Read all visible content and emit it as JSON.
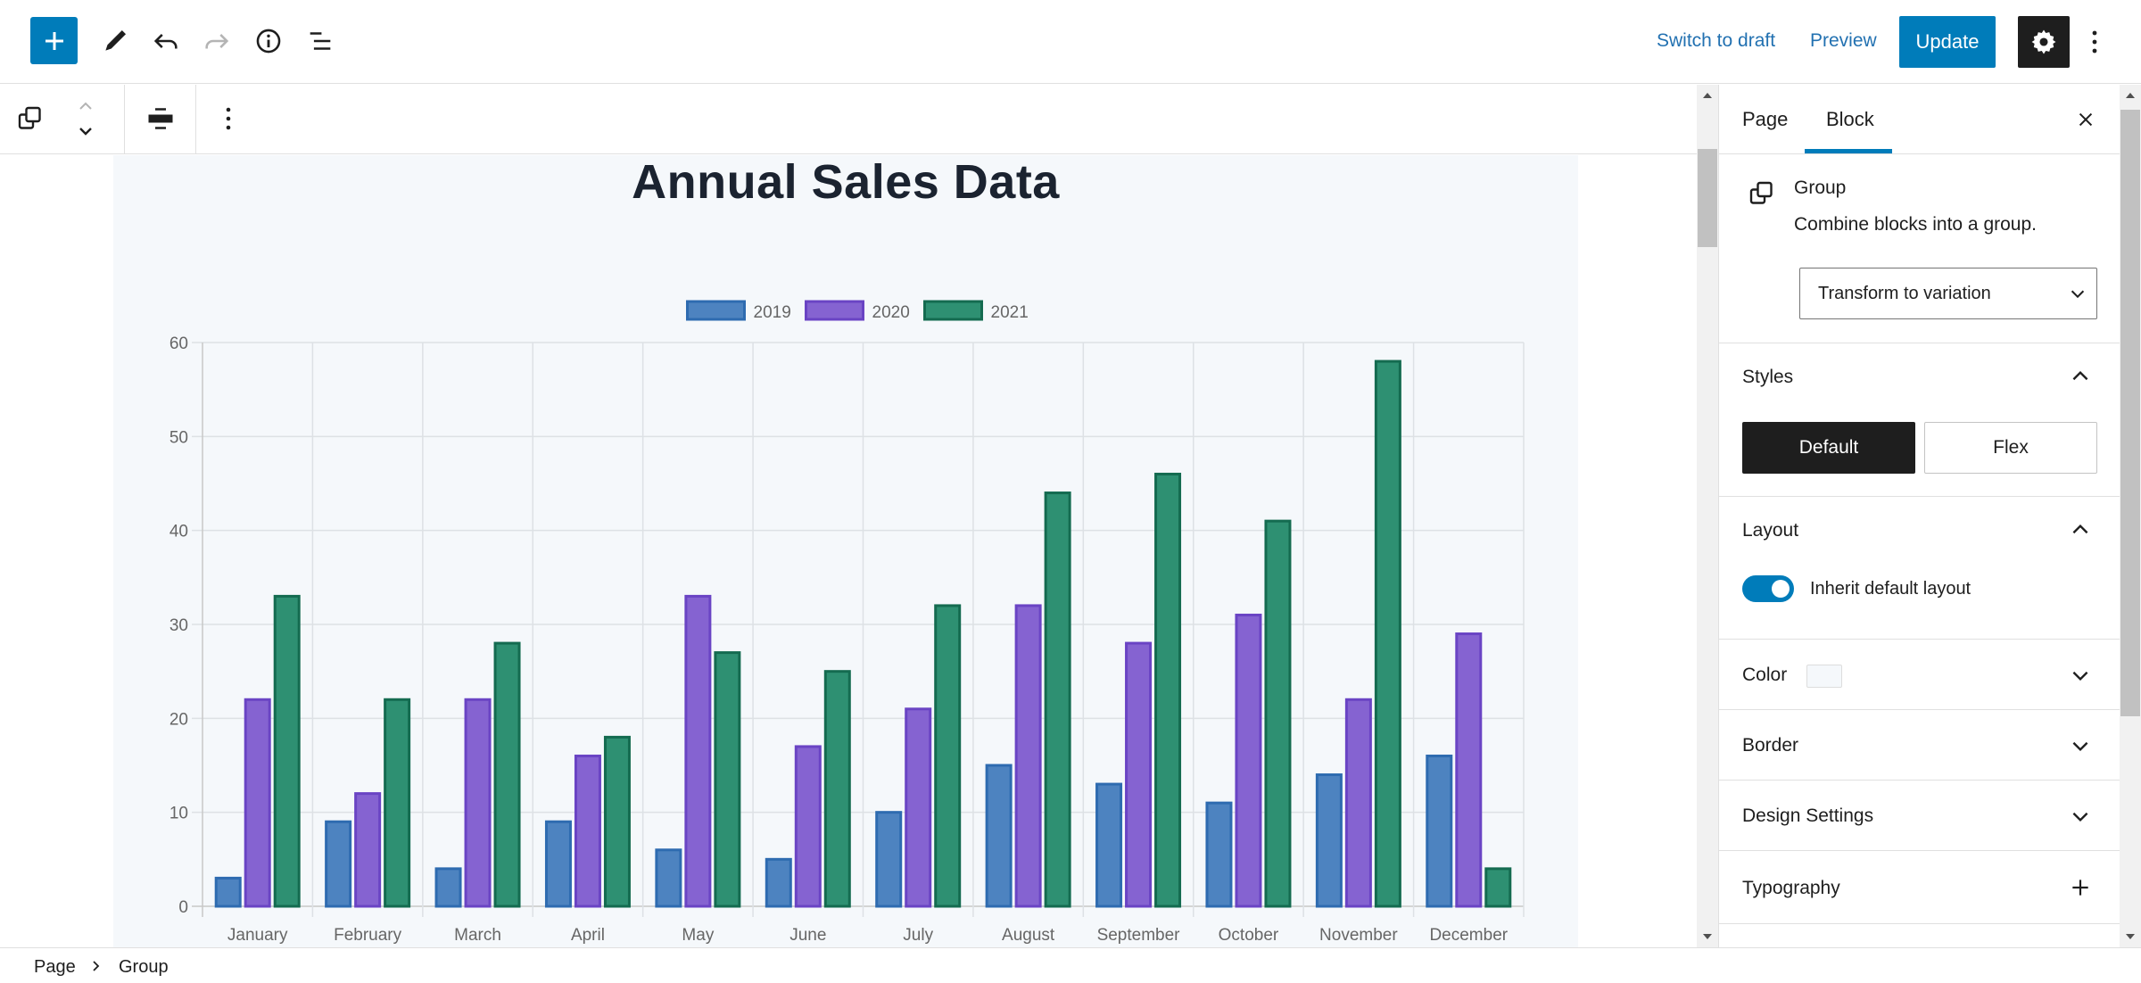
{
  "header": {
    "add_block_icon": "plus-icon",
    "tools_icon": "pencil-icon",
    "undo_icon": "undo-icon",
    "redo_icon": "redo-icon",
    "details_icon": "info-icon",
    "list_view_icon": "list-view-icon",
    "switch_to_draft": "Switch to draft",
    "preview": "Preview",
    "update": "Update",
    "settings_icon": "gear-icon",
    "more_icon": "more-vertical-icon"
  },
  "block_toolbar": {
    "block_type_icon": "group-icon",
    "move_up_icon": "chevron-up-icon",
    "move_down_icon": "chevron-down-icon",
    "align_icon": "align-wide-icon",
    "options_icon": "more-vertical-icon"
  },
  "canvas": {
    "title": "Annual Sales Data",
    "background": "#f5f8fb"
  },
  "chart_data": {
    "type": "bar",
    "categories": [
      "January",
      "February",
      "March",
      "April",
      "May",
      "June",
      "July",
      "August",
      "September",
      "October",
      "November",
      "December"
    ],
    "series": [
      {
        "name": "2019",
        "values": [
          3,
          9,
          4,
          9,
          6,
          5,
          10,
          15,
          13,
          11,
          14,
          16
        ],
        "fill": "#4d83c0",
        "stroke": "#2e6bb0"
      },
      {
        "name": "2020",
        "values": [
          22,
          12,
          22,
          16,
          33,
          17,
          21,
          32,
          28,
          31,
          22,
          29
        ],
        "fill": "#8563d1",
        "stroke": "#6a44c4"
      },
      {
        "name": "2021",
        "values": [
          33,
          22,
          28,
          18,
          27,
          25,
          32,
          44,
          46,
          41,
          58,
          4
        ],
        "fill": "#2e9072",
        "stroke": "#146b50"
      }
    ],
    "ylim": [
      0,
      60
    ],
    "yticks": [
      "0",
      "10",
      "20",
      "30",
      "40",
      "50",
      "60"
    ],
    "grid": true,
    "legend": "top-center"
  },
  "sidebar": {
    "tabs": [
      {
        "label": "Page"
      },
      {
        "label": "Block"
      }
    ],
    "close_icon": "close-icon",
    "block_card": {
      "icon": "group-icon",
      "title": "Group",
      "description": "Combine blocks into a group.",
      "transform_select": "Transform to variation"
    },
    "styles": {
      "title": "Styles",
      "options": [
        "Default",
        "Flex"
      ],
      "selected": "Default"
    },
    "layout": {
      "title": "Layout",
      "toggle_label": "Inherit default layout",
      "toggle_on": true
    },
    "panels": {
      "color": "Color",
      "border": "Border",
      "design": "Design Settings",
      "typography": "Typography"
    }
  },
  "footer": {
    "breadcrumb": [
      "Page",
      "Group"
    ]
  }
}
